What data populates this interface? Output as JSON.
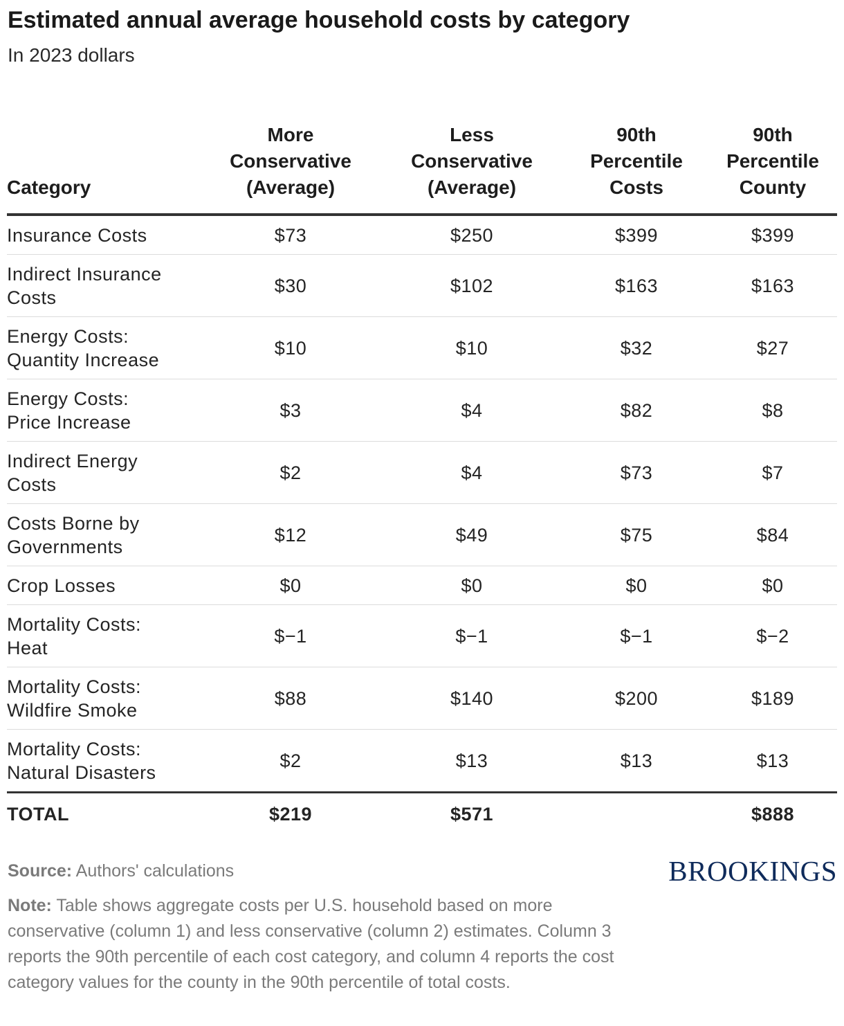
{
  "header": {
    "title": "Estimated annual average household costs by category",
    "subtitle": "In 2023 dollars"
  },
  "chart_data": {
    "type": "table",
    "columns": [
      [
        "Category"
      ],
      [
        "More",
        "Conservative",
        "(Average)"
      ],
      [
        "Less",
        "Conservative",
        "(Average)"
      ],
      [
        "90th",
        "Percentile",
        "Costs"
      ],
      [
        "90th",
        "Percentile",
        "County"
      ]
    ],
    "rows": [
      {
        "category": [
          "Insurance Costs"
        ],
        "values": [
          "$73",
          "$250",
          "$399",
          "$399"
        ]
      },
      {
        "category": [
          "Indirect Insurance",
          "Costs"
        ],
        "values": [
          "$30",
          "$102",
          "$163",
          "$163"
        ]
      },
      {
        "category": [
          "Energy Costs:",
          "Quantity Increase"
        ],
        "values": [
          "$10",
          "$10",
          "$32",
          "$27"
        ]
      },
      {
        "category": [
          "Energy Costs:",
          "Price Increase"
        ],
        "values": [
          "$3",
          "$4",
          "$82",
          "$8"
        ]
      },
      {
        "category": [
          "Indirect Energy",
          "Costs"
        ],
        "values": [
          "$2",
          "$4",
          "$73",
          "$7"
        ]
      },
      {
        "category": [
          "Costs Borne by",
          "Governments"
        ],
        "values": [
          "$12",
          "$49",
          "$75",
          "$84"
        ]
      },
      {
        "category": [
          "Crop Losses"
        ],
        "values": [
          "$0",
          "$0",
          "$0",
          "$0"
        ]
      },
      {
        "category": [
          "Mortality Costs:",
          "Heat"
        ],
        "values": [
          "$−1",
          "$−1",
          "$−1",
          "$−2"
        ]
      },
      {
        "category": [
          "Mortality Costs:",
          "Wildfire Smoke"
        ],
        "values": [
          "$88",
          "$140",
          "$200",
          "$189"
        ]
      },
      {
        "category": [
          "Mortality Costs:",
          "Natural Disasters"
        ],
        "values": [
          "$2",
          "$13",
          "$13",
          "$13"
        ]
      }
    ],
    "total": {
      "category": "TOTAL",
      "values": [
        "$219",
        "$571",
        "",
        "$888"
      ]
    }
  },
  "footer": {
    "source_label": "Source:",
    "source_text": "Authors' calculations",
    "note_label": "Note:",
    "note_text": "Table shows aggregate costs per U.S. household based on more conservative (column 1) and less conservative (column 2) estimates. Column 3 reports the 90th percentile of each cost category, and column 4 reports the cost category values for the county in the 90th percentile of total costs.",
    "brand": "BROOKINGS"
  }
}
